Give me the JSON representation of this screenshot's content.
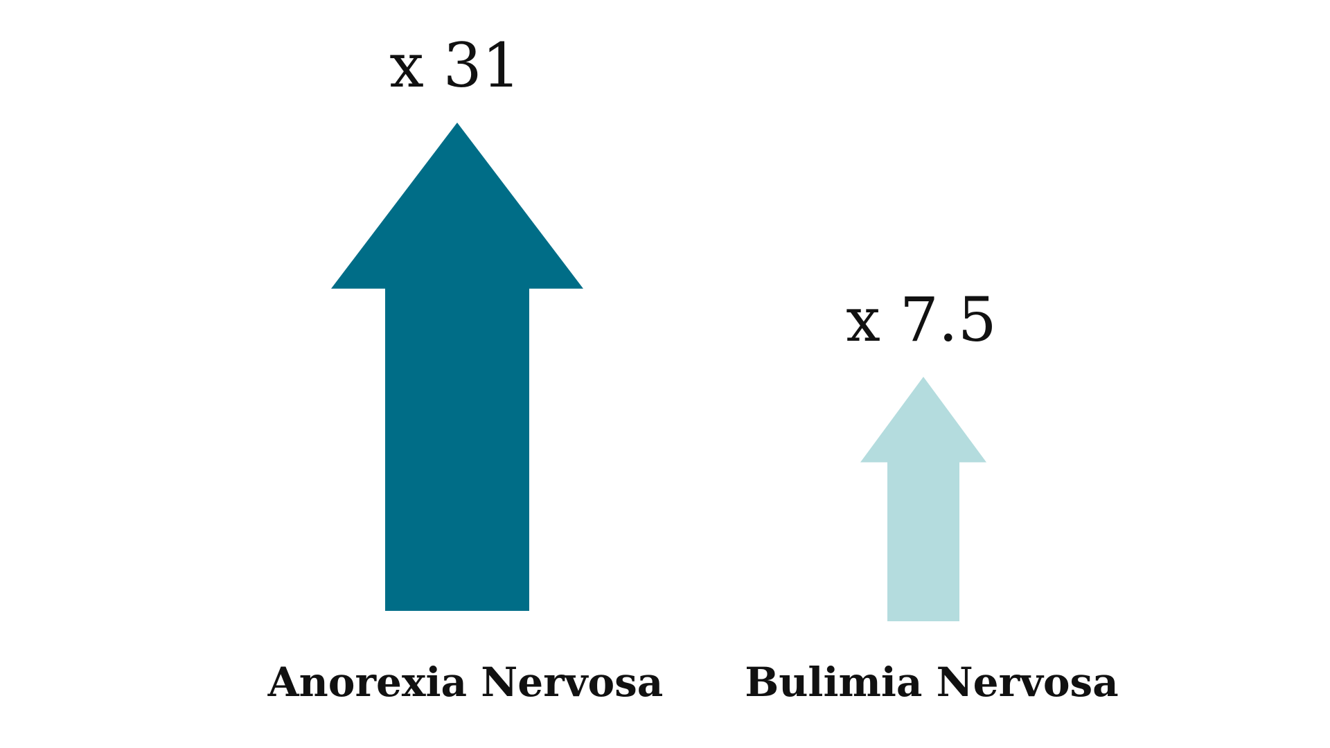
{
  "chart_data": {
    "type": "bar",
    "categories": [
      "Anorexia Nervosa",
      "Bulimia Nervosa"
    ],
    "values": [
      31,
      7.5
    ],
    "value_labels": [
      "x 31",
      "x 7.5"
    ],
    "colors": [
      "#006D87",
      "#B4DCDE"
    ],
    "mark_shape": "up-arrow",
    "title": "",
    "xlabel": "",
    "ylabel": "",
    "legend": "none",
    "grid": false
  }
}
